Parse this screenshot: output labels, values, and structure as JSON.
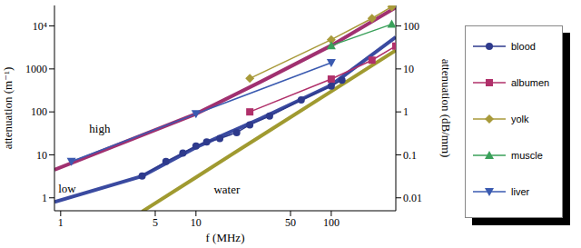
{
  "chart_data": {
    "type": "line",
    "log": true,
    "x_label": "f (MHz)",
    "y_label": "attenuation (m⁻¹)",
    "y2_label": "attenuation (dB/mm)",
    "xlim": [
      0.9,
      300
    ],
    "xticks": [
      1,
      5,
      10,
      50,
      100
    ],
    "ylim": [
      0.5,
      30000
    ],
    "yticks": [
      1,
      10,
      100,
      1000,
      {
        "value": 10000,
        "label": "10⁴"
      }
    ],
    "y2lim": [
      0.005,
      300
    ],
    "y2ticks": [
      0.01,
      0.1,
      1,
      10,
      100
    ],
    "legend": "right",
    "series": [
      {
        "name": "blood",
        "color": "#2e3a8c",
        "marker": "circle",
        "x": [
          4,
          6,
          8,
          10,
          12,
          15,
          20,
          25,
          35,
          60,
          100,
          120
        ],
        "values": [
          3.2,
          7,
          11,
          16,
          20,
          24,
          33,
          50,
          80,
          190,
          400,
          550
        ]
      },
      {
        "name": "albumen",
        "color": "#b0306a",
        "marker": "square",
        "x": [
          25,
          100,
          200,
          300
        ],
        "values": [
          100,
          580,
          1600,
          3400
        ]
      },
      {
        "name": "yolk",
        "color": "#a89a3a",
        "marker": "diamond",
        "x": [
          25,
          100,
          200,
          280
        ],
        "values": [
          600,
          4800,
          15000,
          28000
        ]
      },
      {
        "name": "muscle",
        "color": "#3aa05a",
        "marker": "triangle",
        "x": [
          100,
          280
        ],
        "values": [
          3500,
          11000
        ]
      },
      {
        "name": "liver",
        "color": "#3a5ab0",
        "marker": "triangle-down",
        "x": [
          1.2,
          10,
          100
        ],
        "values": [
          7,
          90,
          1400
        ]
      }
    ],
    "fit_lines": [
      {
        "label": "high",
        "color": "#a03070",
        "x": [
          0.9,
          3,
          10,
          30,
          100,
          300
        ],
        "values": [
          4.5,
          20,
          90,
          500,
          3500,
          27000
        ]
      },
      {
        "label": "low",
        "color": "#3a4aa0",
        "x": [
          0.9,
          4,
          10,
          30,
          100,
          300
        ],
        "values": [
          0.8,
          3.2,
          15,
          70,
          420,
          5500
        ]
      },
      {
        "label": "water",
        "color": "#a09a30",
        "x": [
          4,
          10,
          30,
          100,
          300
        ],
        "values": [
          0.48,
          3,
          27,
          300,
          2700
        ]
      }
    ]
  }
}
